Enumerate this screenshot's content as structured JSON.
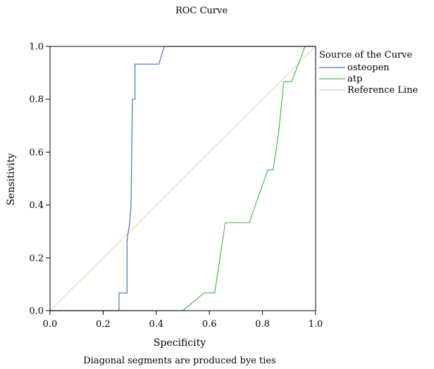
{
  "chart_data": {
    "type": "line",
    "title": "ROC Curve",
    "xlabel": "Specificity",
    "ylabel": "Sensitivity",
    "xlim": [
      0,
      1
    ],
    "ylim": [
      0,
      1
    ],
    "xticks": [
      "0.0",
      "0.2",
      "0.4",
      "0.6",
      "0.8",
      "1.0"
    ],
    "yticks": [
      "0.0",
      "0.2",
      "0.4",
      "0.6",
      "0.8",
      "1.0"
    ],
    "grid": false,
    "legend": {
      "title": "Source of the Curve",
      "placement": "right"
    },
    "footnote": "Diagonal segments are produced bye ties",
    "series": [
      {
        "name": "osteopen",
        "color": "#4f6fb8",
        "points": [
          [
            0,
            0
          ],
          [
            0.26,
            0
          ],
          [
            0.26,
            0.067
          ],
          [
            0.29,
            0.067
          ],
          [
            0.29,
            0.267
          ],
          [
            0.3,
            0.333
          ],
          [
            0.305,
            0.4
          ],
          [
            0.31,
            0.8
          ],
          [
            0.32,
            0.8
          ],
          [
            0.32,
            0.933
          ],
          [
            0.41,
            0.933
          ],
          [
            0.43,
            1
          ],
          [
            1,
            1
          ]
        ]
      },
      {
        "name": "atp",
        "color": "#4fb84f",
        "points": [
          [
            0,
            0
          ],
          [
            0.5,
            0
          ],
          [
            0.56,
            0.05
          ],
          [
            0.58,
            0.067
          ],
          [
            0.62,
            0.067
          ],
          [
            0.66,
            0.333
          ],
          [
            0.75,
            0.333
          ],
          [
            0.82,
            0.533
          ],
          [
            0.84,
            0.533
          ],
          [
            0.86,
            0.667
          ],
          [
            0.88,
            0.867
          ],
          [
            0.91,
            0.867
          ],
          [
            0.96,
            1
          ],
          [
            1,
            1
          ]
        ]
      },
      {
        "name": "Reference Line",
        "color": "#e0dcb0",
        "points": [
          [
            0,
            0
          ],
          [
            1,
            1
          ]
        ]
      }
    ]
  }
}
